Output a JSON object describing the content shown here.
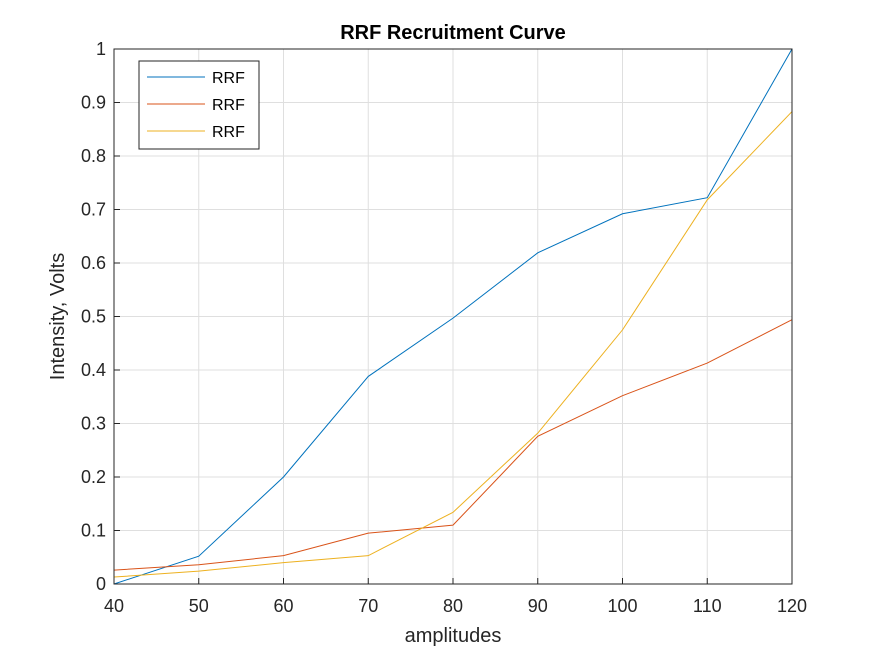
{
  "chart_data": {
    "type": "line",
    "title": "RRF Recruitment Curve",
    "xlabel": "amplitudes",
    "ylabel": "Intensity, Volts",
    "xlim": [
      40,
      120
    ],
    "ylim": [
      0,
      1
    ],
    "x": [
      40,
      50,
      60,
      70,
      80,
      90,
      100,
      110,
      120
    ],
    "xticks": [
      "40",
      "50",
      "60",
      "70",
      "80",
      "90",
      "100",
      "110",
      "120"
    ],
    "yticks": [
      "0",
      "0.1",
      "0.2",
      "0.3",
      "0.4",
      "0.5",
      "0.6",
      "0.7",
      "0.8",
      "0.9",
      "1"
    ],
    "grid": true,
    "legend_position": "top-left",
    "series": [
      {
        "name": "RRF",
        "color": "#0072BD",
        "values": [
          0.0,
          0.052,
          0.2,
          0.388,
          0.497,
          0.619,
          0.692,
          0.722,
          1.0
        ]
      },
      {
        "name": "RRF",
        "color": "#D95319",
        "values": [
          0.026,
          0.036,
          0.053,
          0.095,
          0.11,
          0.276,
          0.352,
          0.413,
          0.494
        ]
      },
      {
        "name": "RRF",
        "color": "#EDB120",
        "values": [
          0.013,
          0.024,
          0.04,
          0.053,
          0.134,
          0.282,
          0.475,
          0.718,
          0.883
        ]
      }
    ]
  }
}
